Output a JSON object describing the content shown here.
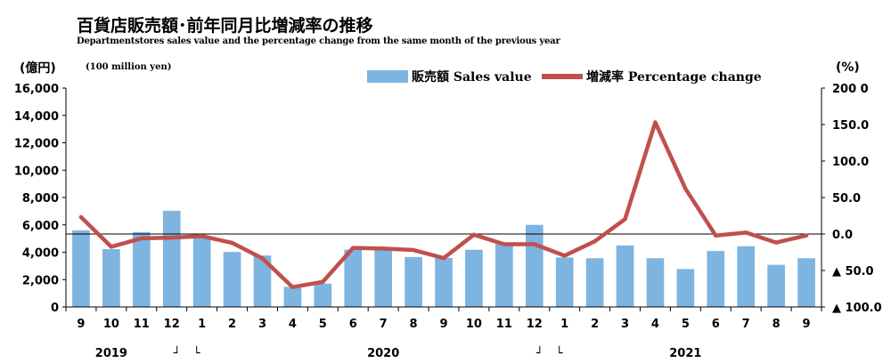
{
  "title": "百貨店販売額･前年同月比増減率の推移",
  "subtitle": "Departmentstores sales value and the percentage change from the same month of the previous year",
  "left_unit": "(億円)",
  "left_unit_note": "(100 million yen)",
  "right_unit": "(%)",
  "colors": {
    "bar": "#7eb4e0",
    "line": "#c0504d"
  },
  "chart_data": {
    "type": "bar",
    "categories": [
      "9",
      "10",
      "11",
      "12",
      "1",
      "2",
      "3",
      "4",
      "5",
      "6",
      "7",
      "8",
      "9",
      "10",
      "11",
      "12",
      "1",
      "2",
      "3",
      "4",
      "5",
      "6",
      "7",
      "8",
      "9"
    ],
    "year_labels": [
      {
        "text": "2019",
        "at_index": 1
      },
      {
        "text": "2020",
        "at_index": 10
      },
      {
        "text": "2021",
        "at_index": 20
      }
    ],
    "year_break_marks": [
      {
        "text": "┘",
        "after_index": 3
      },
      {
        "text": "└",
        "after_index": 3
      },
      {
        "text": "┘",
        "after_index": 15
      },
      {
        "text": "└",
        "after_index": 15
      }
    ],
    "series": [
      {
        "name": "販売額 Sales value",
        "type": "bar",
        "axis": "left",
        "values": [
          5600,
          4230,
          5470,
          7030,
          5050,
          4020,
          3760,
          1470,
          1710,
          4190,
          4140,
          3650,
          3590,
          4180,
          4610,
          6000,
          3620,
          3560,
          4500,
          3560,
          2770,
          4090,
          4440,
          3080,
          3560
        ]
      },
      {
        "name": "増減率 Percentage change",
        "type": "line",
        "axis": "right",
        "values": [
          23.1,
          -17.5,
          -6.0,
          -5.0,
          -2.9,
          -12.2,
          -33.4,
          -72.8,
          -65.6,
          -19.0,
          -20.0,
          -22.0,
          -33.0,
          -1.0,
          -14.0,
          -14.0,
          -29.7,
          -10.0,
          20.4,
          153.0,
          62.0,
          -2.1,
          2.0,
          -11.7,
          -2.0
        ]
      }
    ],
    "y_left": {
      "min": 0,
      "max": 16000,
      "ticks": [
        "0",
        "2,000",
        "4,000",
        "6,000",
        "8,000",
        "10,000",
        "12,000",
        "14,000",
        "16,000"
      ]
    },
    "y_right": {
      "min": -100,
      "max": 200,
      "ticks": [
        {
          "value": 200,
          "label": "200 0"
        },
        {
          "value": 150,
          "label": "150.0"
        },
        {
          "value": 100,
          "label": "100.0"
        },
        {
          "value": 50,
          "label": "50.0"
        },
        {
          "value": 0,
          "label": "0.0"
        },
        {
          "value": -50,
          "label": "▲ 50.0"
        },
        {
          "value": -100,
          "label": "▲ 100.0"
        }
      ]
    },
    "grid": false,
    "legend_position": "top"
  }
}
